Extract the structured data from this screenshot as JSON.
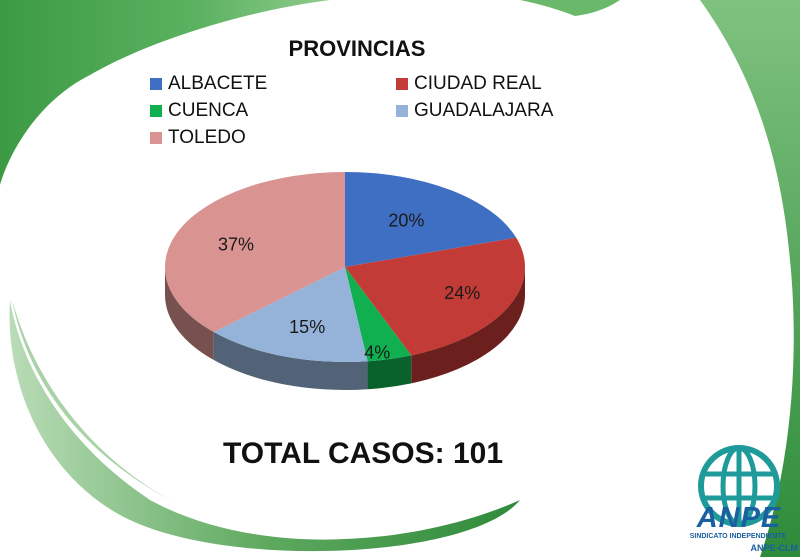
{
  "chart_data": {
    "type": "pie",
    "title": "PROVINCIAS",
    "categories": [
      "ALBACETE",
      "CIUDAD REAL",
      "CUENCA",
      "GUADALAJARA",
      "TOLEDO"
    ],
    "values": [
      20,
      24,
      4,
      15,
      37
    ],
    "value_labels": [
      "20%",
      "24%",
      "4%",
      "15%",
      "37%"
    ],
    "colors": [
      "#3f6fc2",
      "#c23b36",
      "#10b050",
      "#95b3d9",
      "#d99492"
    ],
    "legend_position": "top",
    "style": "3d"
  },
  "legend": [
    {
      "label": "ALBACETE",
      "color": "#3f6fc2"
    },
    {
      "label": "CIUDAD REAL",
      "color": "#c23b36"
    },
    {
      "label": "CUENCA",
      "color": "#10b050"
    },
    {
      "label": "GUADALAJARA",
      "color": "#95b3d9"
    },
    {
      "label": "TOLEDO",
      "color": "#d99492"
    }
  ],
  "total_text": "TOTAL CASOS: 101",
  "logo": {
    "name": "ANPE",
    "subtitle": "SINDICATO INDEPENDIENTE",
    "region": "ANPE-CLM",
    "color": "#1a5fa0",
    "icon": "globe-icon"
  },
  "background": {
    "swoosh_color": "#5aae5a"
  }
}
